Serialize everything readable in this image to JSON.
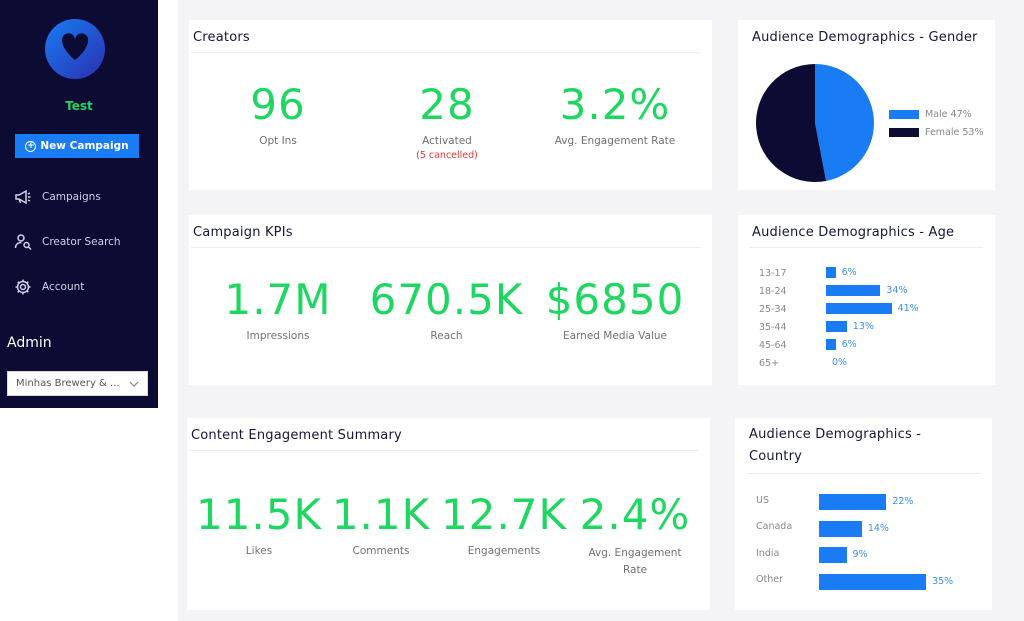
{
  "colors": {
    "sidebar": "#0c0b33",
    "accent_green": "#1ed760",
    "accent_blue": "#1a7cf5",
    "navy": "#0c0b33",
    "alert_red": "#e53b3b"
  },
  "sidebar": {
    "brand_name": "Test",
    "new_campaign_label": "New Campaign",
    "nav": [
      {
        "label": "Campaigns",
        "icon": "megaphone-icon"
      },
      {
        "label": "Creator Search",
        "icon": "user-search-icon"
      },
      {
        "label": "Account",
        "icon": "gear-icon"
      }
    ],
    "admin_label": "Admin",
    "brand_select_value": "Minhas Brewery & ..."
  },
  "creators": {
    "title": "Creators",
    "opt_ins": {
      "value": "96",
      "label": "Opt Ins"
    },
    "activated": {
      "value": "28",
      "label": "Activated",
      "note": "(5 cancelled)"
    },
    "engagement": {
      "value": "3.2%",
      "label": "Avg. Engagement Rate"
    }
  },
  "kpis": {
    "title": "Campaign KPIs",
    "impressions": {
      "value": "1.7M",
      "label": "Impressions"
    },
    "reach": {
      "value": "670.5K",
      "label": "Reach"
    },
    "emv": {
      "value": "$6850",
      "label": "Earned Media Value"
    }
  },
  "engagement": {
    "title": "Content Engagement Summary",
    "likes": {
      "value": "11.5K",
      "label": "Likes"
    },
    "comments": {
      "value": "1.1K",
      "label": "Comments"
    },
    "engagements": {
      "value": "12.7K",
      "label": "Engagements"
    },
    "rate": {
      "value": "2.4%",
      "label": "Avg. Engagement Rate"
    }
  },
  "gender": {
    "title": "Audience Demographics - Gender",
    "legend": [
      {
        "label": "Male 47%",
        "color": "#1a7cf5"
      },
      {
        "label": "Female 53%",
        "color": "#0c0b33"
      }
    ]
  },
  "age": {
    "title": "Audience Demographics - Age",
    "rows": [
      {
        "label": "13-17",
        "pct": "6%"
      },
      {
        "label": "18-24",
        "pct": "34%"
      },
      {
        "label": "25-34",
        "pct": "41%"
      },
      {
        "label": "35-44",
        "pct": "13%"
      },
      {
        "label": "45-64",
        "pct": "6%"
      },
      {
        "label": "65+",
        "pct": "0%"
      }
    ]
  },
  "country": {
    "title": "Audience Demographics -",
    "title_line2": "Country",
    "rows": [
      {
        "label": "US",
        "pct": "22%"
      },
      {
        "label": "Canada",
        "pct": "14%"
      },
      {
        "label": "India",
        "pct": "9%"
      },
      {
        "label": "Other",
        "pct": "35%"
      }
    ]
  },
  "chart_data": [
    {
      "type": "pie",
      "title": "Audience Demographics - Gender",
      "categories": [
        "Male",
        "Female"
      ],
      "values": [
        47,
        53
      ],
      "colors": [
        "#1a7cf5",
        "#0c0b33"
      ],
      "legend": "right"
    },
    {
      "type": "bar",
      "title": "Audience Demographics - Age",
      "orientation": "horizontal",
      "categories": [
        "13-17",
        "18-24",
        "25-34",
        "35-44",
        "45-64",
        "65+"
      ],
      "values": [
        6,
        34,
        41,
        13,
        6,
        0
      ]
    },
    {
      "type": "bar",
      "title": "Audience Demographics - Country",
      "orientation": "horizontal",
      "categories": [
        "US",
        "Canada",
        "India",
        "Other"
      ],
      "values": [
        22,
        14,
        9,
        35
      ]
    }
  ]
}
